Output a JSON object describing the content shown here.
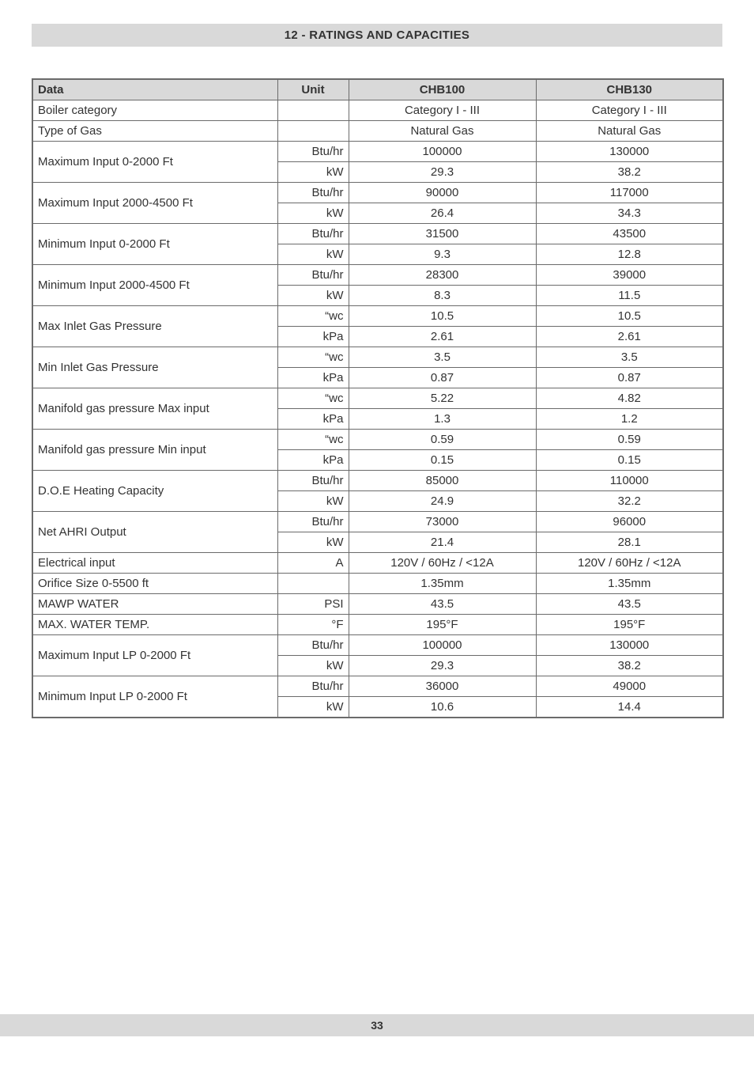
{
  "section_title": "12 - RATINGS AND CAPACITIES",
  "page_number": "33",
  "columns": {
    "data": "Data",
    "unit": "Unit",
    "model_a": "CHB100",
    "model_b": "CHB130"
  },
  "rows": [
    {
      "param": "Boiler category",
      "cells": [
        {
          "unit": "",
          "a": "Category I - III",
          "b": "Category I - III"
        }
      ]
    },
    {
      "param": "Type of Gas",
      "cells": [
        {
          "unit": "",
          "a": "Natural Gas",
          "b": "Natural Gas"
        }
      ]
    },
    {
      "param": "Maximum Input 0-2000 Ft",
      "cells": [
        {
          "unit": "Btu/hr",
          "a": "100000",
          "b": "130000"
        },
        {
          "unit": "kW",
          "a": "29.3",
          "b": "38.2"
        }
      ]
    },
    {
      "param": "Maximum Input 2000-4500 Ft",
      "cells": [
        {
          "unit": "Btu/hr",
          "a": "90000",
          "b": "117000"
        },
        {
          "unit": "kW",
          "a": "26.4",
          "b": "34.3"
        }
      ]
    },
    {
      "param": "Minimum Input 0-2000 Ft",
      "cells": [
        {
          "unit": "Btu/hr",
          "a": "31500",
          "b": "43500"
        },
        {
          "unit": "kW",
          "a": "9.3",
          "b": "12.8"
        }
      ]
    },
    {
      "param": "Minimum Input 2000-4500 Ft",
      "cells": [
        {
          "unit": "Btu/hr",
          "a": "28300",
          "b": "39000"
        },
        {
          "unit": "kW",
          "a": "8.3",
          "b": "11.5"
        }
      ]
    },
    {
      "param": "Max Inlet Gas Pressure",
      "cells": [
        {
          "unit": "“wc",
          "a": "10.5",
          "b": "10.5"
        },
        {
          "unit": "kPa",
          "a": "2.61",
          "b": "2.61"
        }
      ]
    },
    {
      "param": "Min Inlet Gas Pressure",
      "cells": [
        {
          "unit": "“wc",
          "a": "3.5",
          "b": "3.5"
        },
        {
          "unit": "kPa",
          "a": "0.87",
          "b": "0.87"
        }
      ]
    },
    {
      "param": "Manifold gas pressure Max input",
      "cells": [
        {
          "unit": "“wc",
          "a": "5.22",
          "b": "4.82"
        },
        {
          "unit": "kPa",
          "a": "1.3",
          "b": "1.2"
        }
      ]
    },
    {
      "param": "Manifold gas pressure Min input",
      "cells": [
        {
          "unit": "“wc",
          "a": "0.59",
          "b": "0.59"
        },
        {
          "unit": "kPa",
          "a": "0.15",
          "b": "0.15"
        }
      ]
    },
    {
      "param": "D.O.E Heating Capacity",
      "cells": [
        {
          "unit": "Btu/hr",
          "a": "85000",
          "b": "110000"
        },
        {
          "unit": "kW",
          "a": "24.9",
          "b": "32.2"
        }
      ]
    },
    {
      "param": "Net AHRI Output",
      "cells": [
        {
          "unit": "Btu/hr",
          "a": "73000",
          "b": "96000"
        },
        {
          "unit": "kW",
          "a": "21.4",
          "b": "28.1"
        }
      ]
    },
    {
      "param": "Electrical input",
      "cells": [
        {
          "unit": "A",
          "a": "120V / 60Hz / <12A",
          "b": "120V / 60Hz / <12A"
        }
      ]
    },
    {
      "param": "Orifice Size 0-5500 ft",
      "cells": [
        {
          "unit": "",
          "a": "1.35mm",
          "b": "1.35mm"
        }
      ]
    },
    {
      "param": "MAWP WATER",
      "cells": [
        {
          "unit": "PSI",
          "a": "43.5",
          "b": "43.5"
        }
      ]
    },
    {
      "param": "MAX. WATER TEMP.",
      "cells": [
        {
          "unit": "°F",
          "a": "195°F",
          "b": "195°F"
        }
      ]
    },
    {
      "param": "Maximum Input LP 0-2000 Ft",
      "cells": [
        {
          "unit": "Btu/hr",
          "a": "100000",
          "b": "130000"
        },
        {
          "unit": "kW",
          "a": "29.3",
          "b": "38.2"
        }
      ]
    },
    {
      "param": "Minimum Input LP 0-2000 Ft",
      "cells": [
        {
          "unit": "Btu/hr",
          "a": "36000",
          "b": "49000"
        },
        {
          "unit": "kW",
          "a": "10.6",
          "b": "14.4"
        }
      ]
    }
  ]
}
